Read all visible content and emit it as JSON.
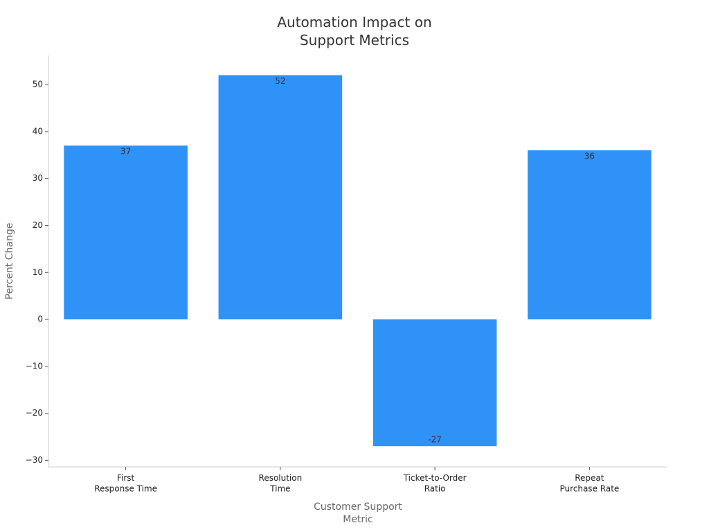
{
  "chart_data": {
    "type": "bar",
    "title": "Automation Impact on\nSupport Metrics",
    "x_label": "Customer Support\nMetric",
    "y_label": "Percent Change",
    "categories": [
      "First\nResponse Time",
      "Resolution\nTime",
      "Ticket-to-Order\nRatio",
      "Repeat\nPurchase Rate"
    ],
    "values": [
      37,
      52,
      -27,
      36
    ],
    "color": "#2f92f7",
    "ylim": [
      -31.4,
      56.2
    ],
    "yticks": [
      {
        "value": -30,
        "label": "−30"
      },
      {
        "value": -20,
        "label": "−20"
      },
      {
        "value": -10,
        "label": "−10"
      },
      0,
      10,
      20,
      30,
      40,
      50
    ],
    "grid": false
  }
}
